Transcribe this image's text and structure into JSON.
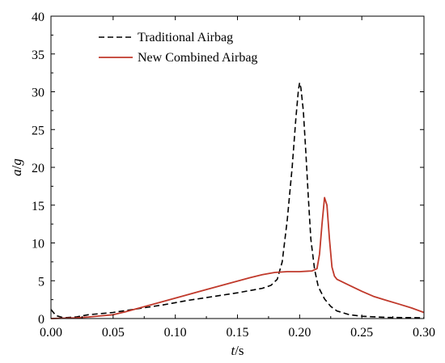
{
  "chart_data": {
    "type": "line",
    "xlabel_italic": "t",
    "xlabel_unit": "/s",
    "ylabel_italic_a": "a",
    "ylabel_sep": "/",
    "ylabel_italic_g": "g",
    "xlim": [
      0.0,
      0.3
    ],
    "ylim": [
      0,
      40
    ],
    "x_ticks": [
      "0.00",
      "0.05",
      "0.10",
      "0.15",
      "0.20",
      "0.25",
      "0.30"
    ],
    "y_ticks": [
      "0",
      "5",
      "10",
      "15",
      "20",
      "25",
      "30",
      "35",
      "40"
    ],
    "grid": false,
    "legend_position": "top-left",
    "series": [
      {
        "name": "Traditional Airbag",
        "style": "dashed",
        "color": "#000000",
        "points": [
          [
            0.0,
            1.2
          ],
          [
            0.004,
            0.4
          ],
          [
            0.01,
            0.1
          ],
          [
            0.02,
            0.2
          ],
          [
            0.03,
            0.5
          ],
          [
            0.05,
            0.8
          ],
          [
            0.07,
            1.3
          ],
          [
            0.09,
            1.8
          ],
          [
            0.11,
            2.4
          ],
          [
            0.13,
            2.9
          ],
          [
            0.15,
            3.4
          ],
          [
            0.17,
            4.0
          ],
          [
            0.177,
            4.4
          ],
          [
            0.182,
            5.2
          ],
          [
            0.186,
            7.5
          ],
          [
            0.19,
            13
          ],
          [
            0.194,
            20
          ],
          [
            0.197,
            26.5
          ],
          [
            0.199,
            30.2
          ],
          [
            0.2,
            31.2
          ],
          [
            0.201,
            30.5
          ],
          [
            0.203,
            27.5
          ],
          [
            0.205,
            22
          ],
          [
            0.207,
            16
          ],
          [
            0.209,
            10.5
          ],
          [
            0.212,
            6.5
          ],
          [
            0.215,
            4.2
          ],
          [
            0.22,
            2.6
          ],
          [
            0.225,
            1.6
          ],
          [
            0.23,
            1.0
          ],
          [
            0.24,
            0.5
          ],
          [
            0.25,
            0.3
          ],
          [
            0.27,
            0.15
          ],
          [
            0.3,
            0.1
          ]
        ]
      },
      {
        "name": "New Combined Airbag",
        "style": "solid",
        "color": "#c0392b",
        "points": [
          [
            0.0,
            0.0
          ],
          [
            0.02,
            0.1
          ],
          [
            0.03,
            0.2
          ],
          [
            0.05,
            0.5
          ],
          [
            0.06,
            0.9
          ],
          [
            0.08,
            1.8
          ],
          [
            0.1,
            2.7
          ],
          [
            0.12,
            3.6
          ],
          [
            0.14,
            4.5
          ],
          [
            0.16,
            5.4
          ],
          [
            0.17,
            5.8
          ],
          [
            0.18,
            6.1
          ],
          [
            0.19,
            6.2
          ],
          [
            0.2,
            6.2
          ],
          [
            0.21,
            6.3
          ],
          [
            0.214,
            6.6
          ],
          [
            0.216,
            8.5
          ],
          [
            0.218,
            12.5
          ],
          [
            0.22,
            16.0
          ],
          [
            0.222,
            15.0
          ],
          [
            0.224,
            10.5
          ],
          [
            0.226,
            6.8
          ],
          [
            0.228,
            5.6
          ],
          [
            0.23,
            5.2
          ],
          [
            0.24,
            4.4
          ],
          [
            0.25,
            3.6
          ],
          [
            0.26,
            2.9
          ],
          [
            0.27,
            2.4
          ],
          [
            0.28,
            1.9
          ],
          [
            0.29,
            1.4
          ],
          [
            0.3,
            0.8
          ]
        ]
      }
    ]
  }
}
